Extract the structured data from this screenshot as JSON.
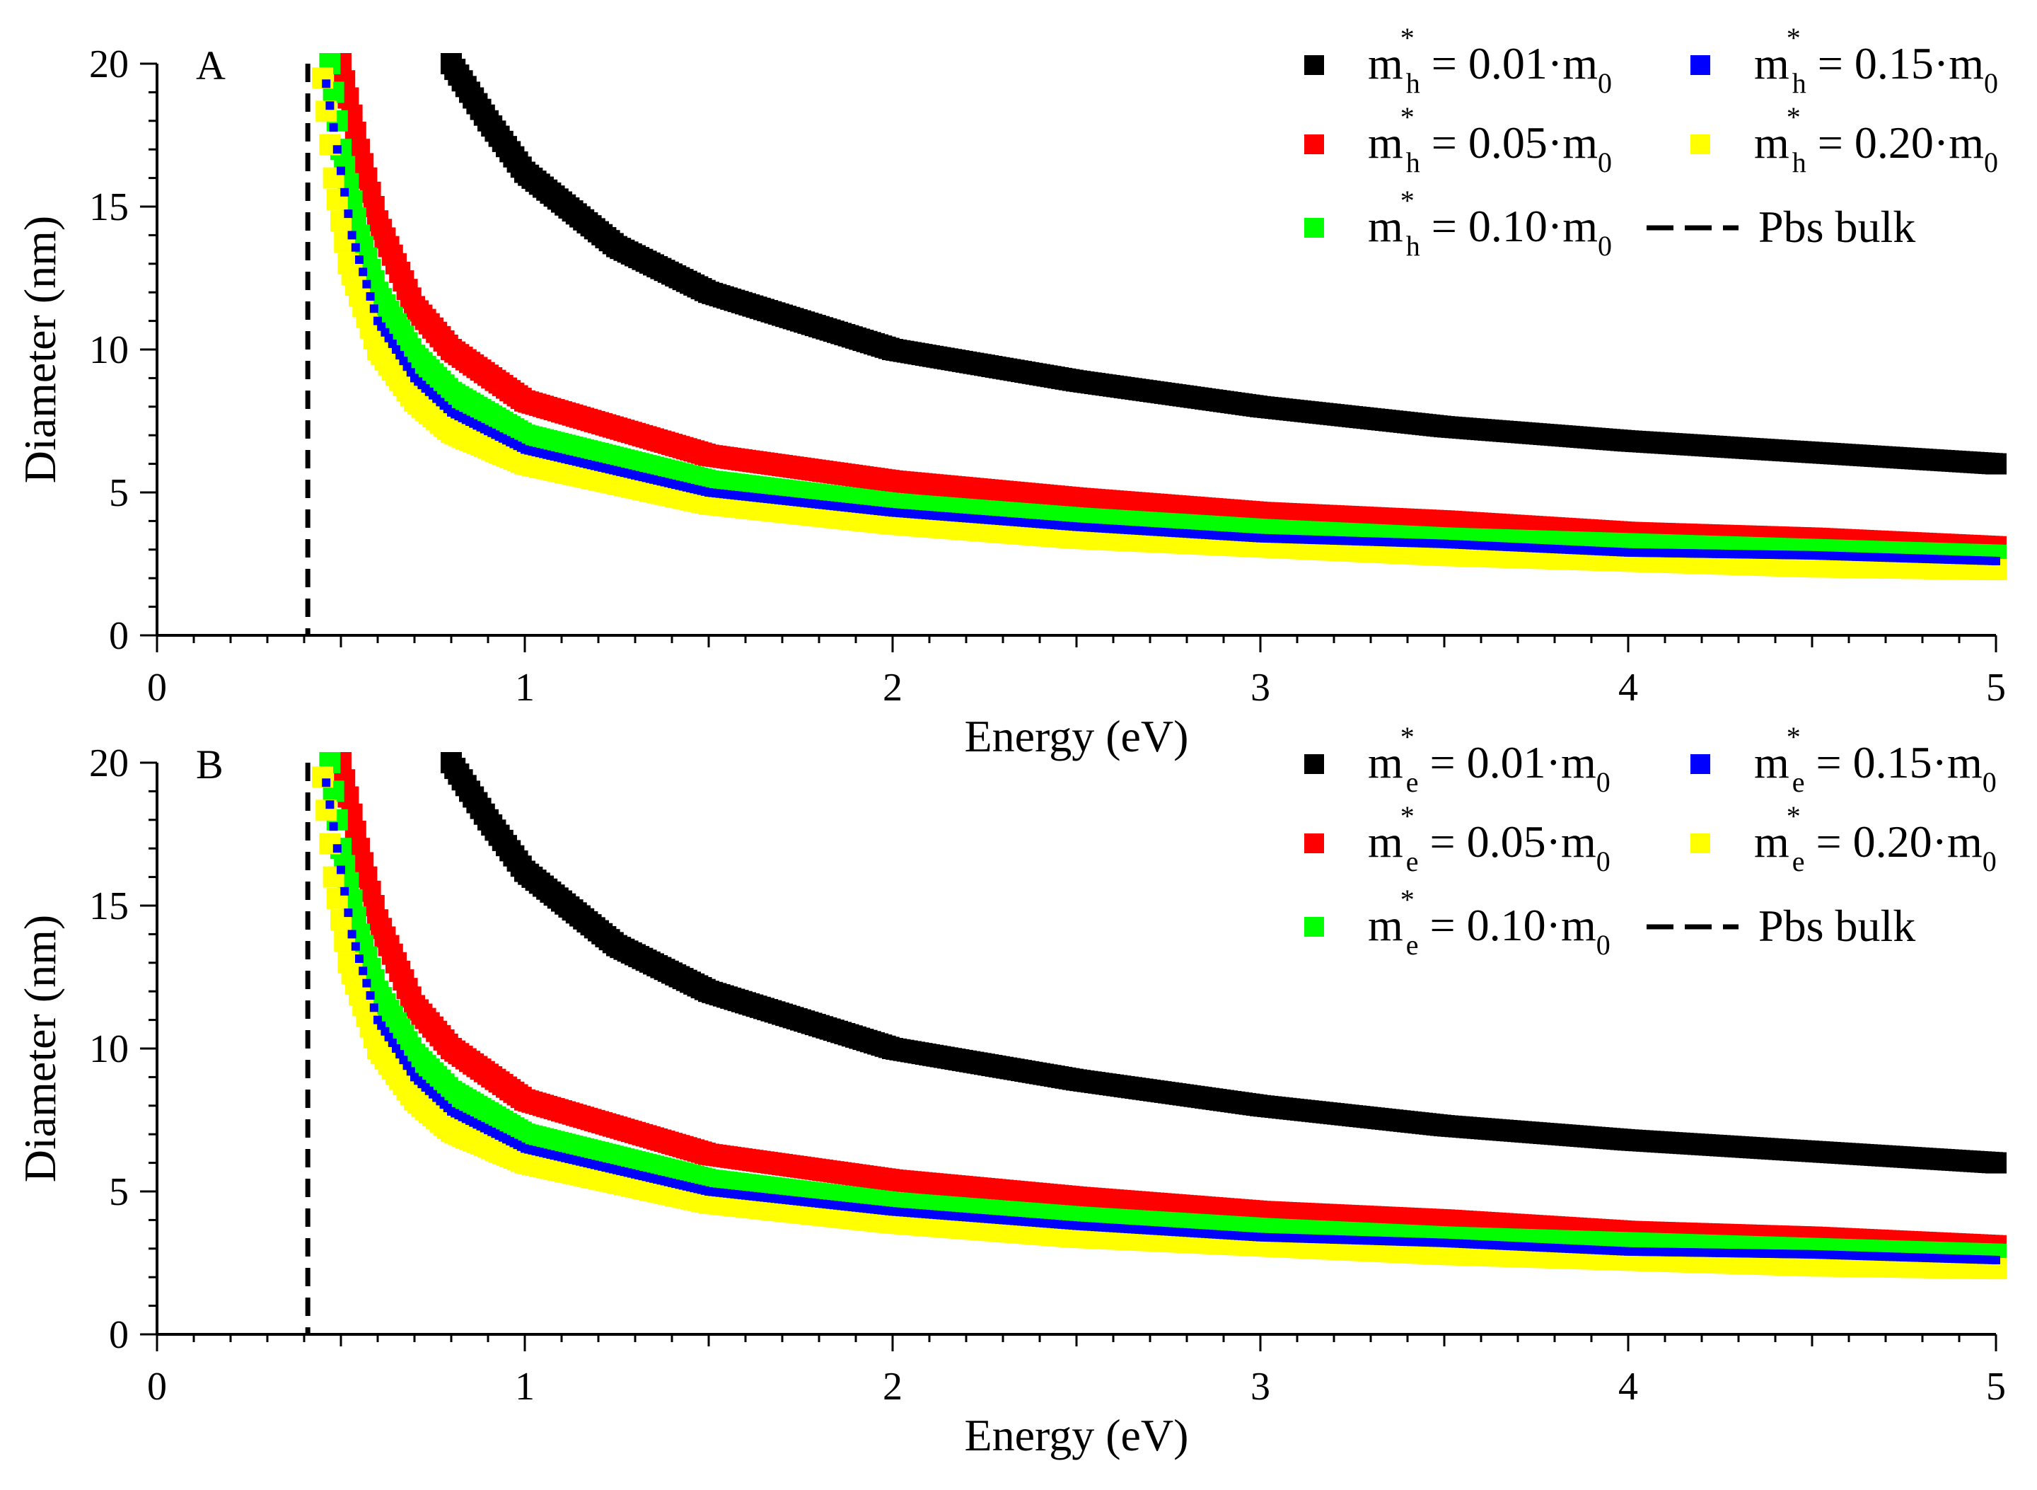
{
  "chart_data": [
    {
      "type": "line",
      "panel_label": "A",
      "xlabel": "Energy (eV)",
      "ylabel": "Diameter (nm)",
      "xlim": [
        0,
        5
      ],
      "ylim": [
        0,
        20
      ],
      "x_ticks": [
        "0",
        "1",
        "2",
        "3",
        "4",
        "5"
      ],
      "y_ticks": [
        "0",
        "5",
        "10",
        "15",
        "20"
      ],
      "bulk_gap_eV": 0.41,
      "series": [
        {
          "key": "h001",
          "var": "m",
          "sub": "h",
          "sup": "*",
          "text": " = 0.01·m",
          "tail_sub": "0",
          "color": "#000000",
          "points": [
            [
              0.8,
              20.0
            ],
            [
              0.9,
              18.0
            ],
            [
              1.0,
              16.2
            ],
            [
              1.25,
              13.6
            ],
            [
              1.5,
              12.0
            ],
            [
              2.0,
              10.0
            ],
            [
              2.5,
              8.9
            ],
            [
              3.0,
              8.0
            ],
            [
              3.5,
              7.3
            ],
            [
              4.0,
              6.8
            ],
            [
              4.5,
              6.4
            ],
            [
              5.0,
              6.0
            ]
          ]
        },
        {
          "key": "h005",
          "var": "m",
          "sub": "h",
          "sup": "*",
          "text": " = 0.05·m",
          "tail_sub": "0",
          "color": "#ff0000",
          "points": [
            [
              0.5,
              20.0
            ],
            [
              0.55,
              17.0
            ],
            [
              0.6,
              14.5
            ],
            [
              0.7,
              11.5
            ],
            [
              0.8,
              10.0
            ],
            [
              1.0,
              8.2
            ],
            [
              1.5,
              6.3
            ],
            [
              2.0,
              5.4
            ],
            [
              2.5,
              4.8
            ],
            [
              3.0,
              4.3
            ],
            [
              3.5,
              4.0
            ],
            [
              4.0,
              3.6
            ],
            [
              4.5,
              3.4
            ],
            [
              5.0,
              3.1
            ]
          ]
        },
        {
          "key": "h010",
          "var": "m",
          "sub": "h",
          "sup": "*",
          "text": " = 0.10·m",
          "tail_sub": "0",
          "color": "#00ff00",
          "points": [
            [
              0.47,
              20.0
            ],
            [
              0.5,
              17.0
            ],
            [
              0.55,
              14.0
            ],
            [
              0.6,
              12.0
            ],
            [
              0.7,
              9.8
            ],
            [
              0.8,
              8.5
            ],
            [
              1.0,
              7.0
            ],
            [
              1.5,
              5.4
            ],
            [
              2.0,
              4.6
            ],
            [
              2.5,
              4.1
            ],
            [
              3.0,
              3.7
            ],
            [
              3.5,
              3.4
            ],
            [
              4.0,
              3.2
            ],
            [
              4.5,
              3.0
            ],
            [
              5.0,
              2.8
            ]
          ]
        },
        {
          "key": "h015",
          "var": "m",
          "sub": "h",
          "sup": "*",
          "text": " = 0.15·m",
          "tail_sub": "0",
          "color": "#0000ff",
          "points": [
            [
              0.46,
              19.3
            ],
            [
              0.49,
              17.0
            ],
            [
              0.53,
              14.0
            ],
            [
              0.6,
              11.0
            ],
            [
              0.7,
              9.0
            ],
            [
              0.8,
              7.8
            ],
            [
              1.0,
              6.5
            ],
            [
              1.5,
              5.0
            ],
            [
              2.0,
              4.3
            ],
            [
              2.5,
              3.8
            ],
            [
              3.0,
              3.4
            ],
            [
              3.5,
              3.2
            ],
            [
              4.0,
              2.9
            ],
            [
              4.5,
              2.8
            ],
            [
              5.0,
              2.6
            ]
          ]
        },
        {
          "key": "h020",
          "var": "m",
          "sub": "h",
          "sup": "*",
          "text": " = 0.20·m",
          "tail_sub": "0",
          "color": "#ffff00",
          "points": [
            [
              0.45,
              19.5
            ],
            [
              0.48,
              16.0
            ],
            [
              0.52,
              13.0
            ],
            [
              0.6,
              10.0
            ],
            [
              0.7,
              8.2
            ],
            [
              0.8,
              7.1
            ],
            [
              1.0,
              6.0
            ],
            [
              1.5,
              4.6
            ],
            [
              2.0,
              3.9
            ],
            [
              2.5,
              3.4
            ],
            [
              3.0,
              3.1
            ],
            [
              3.5,
              2.8
            ],
            [
              4.0,
              2.6
            ],
            [
              4.5,
              2.4
            ],
            [
              5.0,
              2.3
            ]
          ]
        }
      ],
      "bulk_legend": "Pbs bulk"
    },
    {
      "type": "line",
      "panel_label": "B",
      "xlabel": "Energy (eV)",
      "ylabel": "Diameter (nm)",
      "xlim": [
        0,
        5
      ],
      "ylim": [
        0,
        20
      ],
      "x_ticks": [
        "0",
        "1",
        "2",
        "3",
        "4",
        "5"
      ],
      "y_ticks": [
        "0",
        "5",
        "10",
        "15",
        "20"
      ],
      "bulk_gap_eV": 0.41,
      "series": [
        {
          "key": "e001",
          "var": "m",
          "sub": "e",
          "sup": "*",
          "text": " = 0.01·m",
          "tail_sub": "0",
          "color": "#000000",
          "points": [
            [
              0.8,
              20.0
            ],
            [
              0.9,
              18.0
            ],
            [
              1.0,
              16.2
            ],
            [
              1.25,
              13.6
            ],
            [
              1.5,
              12.0
            ],
            [
              2.0,
              10.0
            ],
            [
              2.5,
              8.9
            ],
            [
              3.0,
              8.0
            ],
            [
              3.5,
              7.3
            ],
            [
              4.0,
              6.8
            ],
            [
              4.5,
              6.4
            ],
            [
              5.0,
              6.0
            ]
          ]
        },
        {
          "key": "e005",
          "var": "m",
          "sub": "e",
          "sup": "*",
          "text": " = 0.05·m",
          "tail_sub": "0",
          "color": "#ff0000",
          "points": [
            [
              0.5,
              20.0
            ],
            [
              0.55,
              17.0
            ],
            [
              0.6,
              14.5
            ],
            [
              0.7,
              11.5
            ],
            [
              0.8,
              10.0
            ],
            [
              1.0,
              8.2
            ],
            [
              1.5,
              6.3
            ],
            [
              2.0,
              5.4
            ],
            [
              2.5,
              4.8
            ],
            [
              3.0,
              4.3
            ],
            [
              3.5,
              4.0
            ],
            [
              4.0,
              3.6
            ],
            [
              4.5,
              3.4
            ],
            [
              5.0,
              3.1
            ]
          ]
        },
        {
          "key": "e010",
          "var": "m",
          "sub": "e",
          "sup": "*",
          "text": " = 0.10·m",
          "tail_sub": "0",
          "color": "#00ff00",
          "points": [
            [
              0.47,
              20.0
            ],
            [
              0.5,
              17.0
            ],
            [
              0.55,
              14.0
            ],
            [
              0.6,
              12.0
            ],
            [
              0.7,
              9.8
            ],
            [
              0.8,
              8.5
            ],
            [
              1.0,
              7.0
            ],
            [
              1.5,
              5.4
            ],
            [
              2.0,
              4.6
            ],
            [
              2.5,
              4.1
            ],
            [
              3.0,
              3.7
            ],
            [
              3.5,
              3.4
            ],
            [
              4.0,
              3.2
            ],
            [
              4.5,
              3.0
            ],
            [
              5.0,
              2.8
            ]
          ]
        },
        {
          "key": "e015",
          "var": "m",
          "sub": "e",
          "sup": "*",
          "text": " = 0.15·m",
          "tail_sub": "0",
          "color": "#0000ff",
          "points": [
            [
              0.46,
              19.3
            ],
            [
              0.49,
              17.0
            ],
            [
              0.53,
              14.0
            ],
            [
              0.6,
              11.0
            ],
            [
              0.7,
              9.0
            ],
            [
              0.8,
              7.8
            ],
            [
              1.0,
              6.5
            ],
            [
              1.5,
              5.0
            ],
            [
              2.0,
              4.3
            ],
            [
              2.5,
              3.8
            ],
            [
              3.0,
              3.4
            ],
            [
              3.5,
              3.2
            ],
            [
              4.0,
              2.9
            ],
            [
              4.5,
              2.8
            ],
            [
              5.0,
              2.6
            ]
          ]
        },
        {
          "key": "e020",
          "var": "m",
          "sub": "e",
          "sup": "*",
          "text": " = 0.20·m",
          "tail_sub": "0",
          "color": "#ffff00",
          "points": [
            [
              0.45,
              19.5
            ],
            [
              0.48,
              16.0
            ],
            [
              0.52,
              13.0
            ],
            [
              0.6,
              10.0
            ],
            [
              0.7,
              8.2
            ],
            [
              0.8,
              7.1
            ],
            [
              1.0,
              6.0
            ],
            [
              1.5,
              4.6
            ],
            [
              2.0,
              3.9
            ],
            [
              2.5,
              3.4
            ],
            [
              3.0,
              3.1
            ],
            [
              3.5,
              2.8
            ],
            [
              4.0,
              2.6
            ],
            [
              4.5,
              2.4
            ],
            [
              5.0,
              2.3
            ]
          ]
        }
      ],
      "bulk_legend": "Pbs bulk"
    }
  ]
}
